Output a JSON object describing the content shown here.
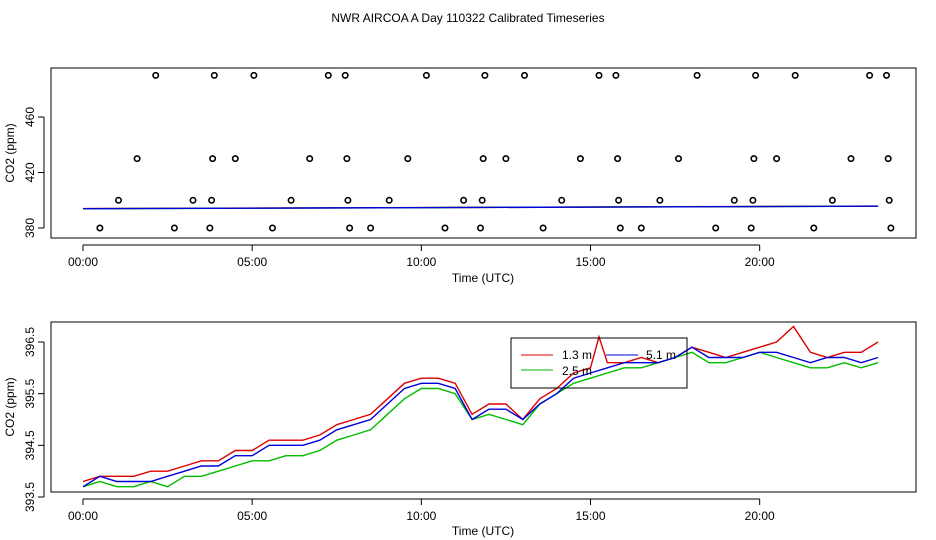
{
  "figure_title": "NWR AIRCOA A  Day 110322  Calibrated Timeseries",
  "colors": {
    "red": "#dd0000",
    "green": "#00bb00",
    "blue": "#0000dd",
    "axis": "#000000"
  },
  "chart_data": [
    {
      "type": "scatter+line",
      "xlabel": "Time (UTC)",
      "ylabel": "CO2 (ppm)",
      "xlim": [
        0,
        24
      ],
      "ylim": [
        378,
        490
      ],
      "x_ticks": [
        0,
        5,
        10,
        15,
        20
      ],
      "x_tick_labels": [
        "00:00",
        "05:00",
        "10:00",
        "15:00",
        "20:00"
      ],
      "y_ticks": [
        380,
        420,
        460
      ],
      "y_tick_labels": [
        "380",
        "420",
        "460"
      ],
      "grid": false,
      "points": {
        "name": "",
        "x": [
          0.5,
          1.05,
          1.6,
          2.15,
          2.7,
          3.25,
          3.75,
          3.8,
          3.83,
          3.88,
          4.5,
          5.05,
          5.6,
          6.15,
          6.7,
          7.25,
          7.75,
          7.8,
          7.83,
          7.88,
          8.5,
          9.05,
          9.6,
          10.15,
          10.7,
          11.25,
          11.75,
          11.8,
          11.83,
          11.88,
          12.5,
          13.05,
          13.6,
          14.15,
          14.7,
          15.25,
          15.75,
          15.8,
          15.83,
          15.88,
          16.5,
          17.05,
          17.6,
          18.15,
          18.7,
          19.25,
          19.75,
          19.8,
          19.83,
          19.88,
          20.5,
          21.05,
          21.6,
          22.15,
          22.7,
          23.25,
          23.75,
          23.8,
          23.83,
          23.88
        ],
        "y": [
          380,
          400,
          430,
          490,
          380,
          400,
          380,
          400,
          430,
          490,
          430,
          490,
          380,
          400,
          430,
          490,
          490,
          430,
          400,
          380,
          380,
          400,
          430,
          490,
          380,
          400,
          380,
          400,
          430,
          490,
          430,
          490,
          380,
          400,
          430,
          490,
          490,
          430,
          400,
          380,
          380,
          400,
          430,
          490,
          380,
          400,
          380,
          400,
          430,
          490,
          430,
          490,
          380,
          400,
          430,
          490,
          490,
          430,
          400,
          380
        ]
      },
      "series": [
        {
          "name": "",
          "color": "#dd0000",
          "x": [
            0,
            23.5
          ],
          "y": [
            394.0,
            395.8
          ]
        },
        {
          "name": "",
          "color": "#00bb00",
          "x": [
            0,
            23.5
          ],
          "y": [
            393.9,
            395.7
          ]
        },
        {
          "name": "",
          "color": "#0000dd",
          "x": [
            0,
            23.5
          ],
          "y": [
            393.9,
            395.7
          ]
        }
      ]
    },
    {
      "type": "line",
      "xlabel": "Time (UTC)",
      "ylabel": "CO2 (ppm)",
      "xlim": [
        0,
        24
      ],
      "ylim": [
        393.5,
        396.7
      ],
      "x_ticks": [
        0,
        5,
        10,
        15,
        20
      ],
      "x_tick_labels": [
        "00:00",
        "05:00",
        "10:00",
        "15:00",
        "20:00"
      ],
      "y_ticks": [
        393.5,
        394.5,
        395.5,
        396.5
      ],
      "y_tick_labels": [
        "393.5",
        "394.5",
        "395.5",
        "396.5"
      ],
      "grid": false,
      "legend_position": "top-right",
      "series": [
        {
          "name": "1.3 m",
          "color": "#dd0000",
          "x": [
            0,
            0.5,
            1,
            1.5,
            2,
            2.5,
            3,
            3.5,
            4,
            4.5,
            5,
            5.5,
            6,
            6.5,
            7,
            7.5,
            8,
            8.5,
            9,
            9.5,
            10,
            10.5,
            11,
            11.5,
            12,
            12.5,
            13,
            13.5,
            14,
            14.5,
            15,
            15.25,
            15.5,
            16,
            16.5,
            17,
            17.5,
            18,
            18.5,
            19,
            19.5,
            20,
            20.5,
            21,
            21.5,
            22,
            22.5,
            23,
            23.5
          ],
          "y": [
            393.8,
            393.9,
            393.9,
            393.9,
            394.0,
            394.0,
            394.1,
            394.2,
            394.2,
            394.4,
            394.4,
            394.6,
            394.6,
            394.6,
            394.7,
            394.9,
            395.0,
            395.1,
            395.4,
            395.7,
            395.8,
            395.8,
            395.7,
            395.1,
            395.3,
            395.3,
            395.0,
            395.4,
            395.6,
            395.9,
            396.0,
            396.6,
            396.1,
            396.1,
            396.2,
            396.1,
            396.2,
            396.4,
            396.3,
            396.2,
            396.3,
            396.4,
            396.5,
            396.8,
            396.3,
            396.2,
            396.3,
            396.3,
            396.5
          ]
        },
        {
          "name": "2.5 m",
          "color": "#00bb00",
          "x": [
            0,
            0.5,
            1,
            1.5,
            2,
            2.5,
            3,
            3.5,
            4,
            4.5,
            5,
            5.5,
            6,
            6.5,
            7,
            7.5,
            8,
            8.5,
            9,
            9.5,
            10,
            10.5,
            11,
            11.5,
            12,
            12.5,
            13,
            13.5,
            14,
            14.5,
            15,
            15.5,
            16,
            16.5,
            17,
            17.5,
            18,
            18.5,
            19,
            19.5,
            20,
            20.5,
            21,
            21.5,
            22,
            22.5,
            23,
            23.5
          ],
          "y": [
            393.7,
            393.8,
            393.7,
            393.7,
            393.8,
            393.7,
            393.9,
            393.9,
            394.0,
            394.1,
            394.2,
            394.2,
            394.3,
            394.3,
            394.4,
            394.6,
            394.7,
            394.8,
            395.1,
            395.4,
            395.6,
            395.6,
            395.5,
            395.0,
            395.1,
            395.0,
            394.9,
            395.3,
            395.5,
            395.7,
            395.8,
            395.9,
            396.0,
            396.0,
            396.1,
            396.2,
            396.3,
            396.1,
            396.1,
            396.2,
            396.3,
            396.2,
            396.1,
            396.0,
            396.0,
            396.1,
            396.0,
            396.1
          ]
        },
        {
          "name": "5.1 m",
          "color": "#0000dd",
          "x": [
            0,
            0.5,
            1,
            1.5,
            2,
            2.5,
            3,
            3.5,
            4,
            4.5,
            5,
            5.5,
            6,
            6.5,
            7,
            7.5,
            8,
            8.5,
            9,
            9.5,
            10,
            10.5,
            11,
            11.5,
            12,
            12.5,
            13,
            13.5,
            14,
            14.5,
            15,
            15.5,
            16,
            16.5,
            17,
            17.5,
            18,
            18.5,
            19,
            19.5,
            20,
            20.5,
            21,
            21.5,
            22,
            22.5,
            23,
            23.5
          ],
          "y": [
            393.7,
            393.9,
            393.8,
            393.8,
            393.8,
            393.9,
            394.0,
            394.1,
            394.1,
            394.3,
            394.3,
            394.5,
            394.5,
            394.5,
            394.6,
            394.8,
            394.9,
            395.0,
            395.3,
            395.6,
            395.7,
            395.7,
            395.6,
            395.0,
            395.2,
            395.2,
            395.0,
            395.3,
            395.5,
            395.8,
            395.9,
            396.0,
            396.1,
            396.1,
            396.1,
            396.2,
            396.4,
            396.2,
            396.2,
            396.2,
            396.3,
            396.3,
            396.2,
            396.1,
            396.2,
            396.2,
            396.1,
            396.2
          ]
        }
      ]
    }
  ]
}
